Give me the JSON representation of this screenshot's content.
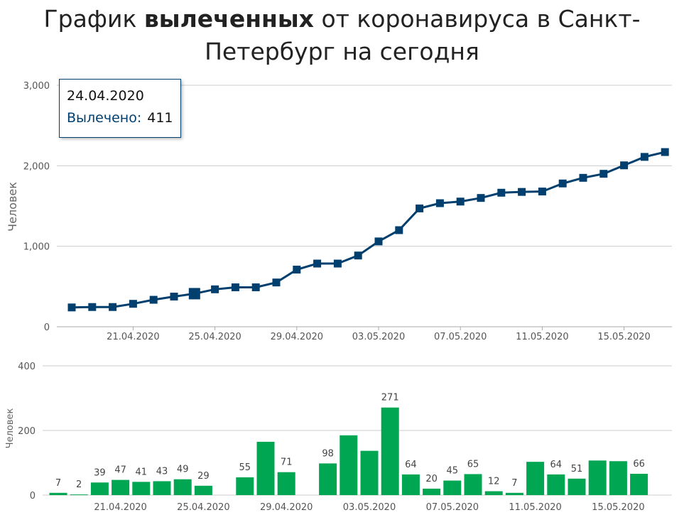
{
  "title": {
    "prefix": "График ",
    "bold": "вылеченных",
    "suffix": " от коронавируса в Санкт-Петербург на сегодня"
  },
  "colors": {
    "line": "#003f6e",
    "bar": "#00a651",
    "grid": "#cccccc"
  },
  "tooltip": {
    "date": "24.04.2020",
    "key": "Вылечено:",
    "value": "411"
  },
  "chart_data": [
    {
      "type": "line",
      "ylabel": "Человек",
      "ylim": [
        0,
        3000
      ],
      "yticks": [
        0,
        1000,
        2000,
        3000
      ],
      "ytick_labels": [
        "0",
        "1,000",
        "2,000",
        "3,000"
      ],
      "x": [
        "18.04.2020",
        "19.04.2020",
        "20.04.2020",
        "21.04.2020",
        "22.04.2020",
        "23.04.2020",
        "24.04.2020",
        "25.04.2020",
        "26.04.2020",
        "27.04.2020",
        "28.04.2020",
        "29.04.2020",
        "30.04.2020",
        "01.05.2020",
        "02.05.2020",
        "03.05.2020",
        "04.05.2020",
        "05.05.2020",
        "06.05.2020",
        "07.05.2020",
        "08.05.2020",
        "09.05.2020",
        "10.05.2020",
        "11.05.2020",
        "12.05.2020",
        "13.05.2020",
        "14.05.2020",
        "15.05.2020",
        "16.05.2020",
        "17.05.2020"
      ],
      "xtick_labels": [
        "21.04.2020",
        "25.04.2020",
        "29.04.2020",
        "03.05.2020",
        "07.05.2020",
        "11.05.2020",
        "15.05.2020"
      ],
      "series": [
        {
          "values": [
            240,
            245,
            245,
            285,
            335,
            375,
            411,
            465,
            490,
            490,
            550,
            710,
            785,
            785,
            885,
            1060,
            1200,
            1470,
            1535,
            1555,
            1600,
            1665,
            1675,
            1680,
            1780,
            1850,
            1900,
            2005,
            2110,
            2170
          ]
        }
      ],
      "grid": true
    },
    {
      "type": "bar",
      "ylabel": "Человек",
      "ylim": [
        0,
        400
      ],
      "yticks": [
        0,
        200,
        400
      ],
      "ytick_labels": [
        "0",
        "200",
        "400"
      ],
      "x": [
        "18.04.2020",
        "19.04.2020",
        "20.04.2020",
        "21.04.2020",
        "22.04.2020",
        "23.04.2020",
        "24.04.2020",
        "25.04.2020",
        "26.04.2020",
        "27.04.2020",
        "28.04.2020",
        "29.04.2020",
        "30.04.2020",
        "01.05.2020",
        "02.05.2020",
        "03.05.2020",
        "04.05.2020",
        "05.05.2020",
        "06.05.2020",
        "07.05.2020",
        "08.05.2020",
        "09.05.2020",
        "10.05.2020",
        "11.05.2020",
        "12.05.2020",
        "13.05.2020",
        "14.05.2020",
        "15.05.2020",
        "16.05.2020",
        "17.05.2020"
      ],
      "xtick_labels": [
        "21.04.2020",
        "25.04.2020",
        "29.04.2020",
        "03.05.2020",
        "07.05.2020",
        "11.05.2020",
        "15.05.2020"
      ],
      "values": [
        7,
        2,
        39,
        47,
        41,
        43,
        49,
        29,
        0,
        55,
        165,
        71,
        0,
        98,
        185,
        137,
        271,
        64,
        20,
        45,
        65,
        12,
        7,
        103,
        64,
        51,
        107,
        105,
        66,
        0
      ],
      "data_labels": [
        "7",
        "2",
        "39",
        "47",
        "41",
        "43",
        "49",
        "29",
        "",
        "55",
        "",
        "71",
        "",
        "98",
        "",
        "",
        "271",
        "64",
        "20",
        "45",
        "65",
        "12",
        "7",
        "",
        "64",
        "51",
        "",
        "",
        "66",
        ""
      ],
      "grid": true
    }
  ]
}
